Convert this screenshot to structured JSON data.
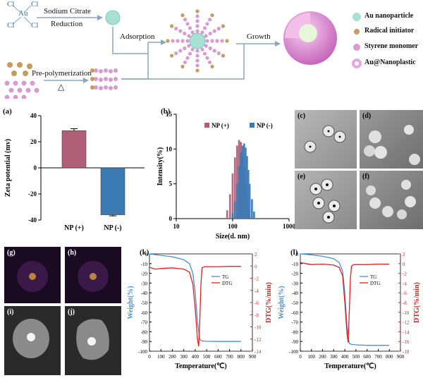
{
  "scheme": {
    "au_symbol": "Au",
    "cl_label": "Cl",
    "step_sodium_citrate": "Sodium Citrate",
    "step_reduction": "Reduction",
    "step_prepolymerization": "Pre-polymerization",
    "delta_symbol": "△",
    "step_adsorption": "Adsorption",
    "step_growth": "Growth",
    "legend": [
      {
        "label": "Au nanoparticle",
        "color": "#a8e0d4"
      },
      {
        "label": "Radical initiator",
        "color": "#c79a5e"
      },
      {
        "label": "Styrene monomer",
        "color": "#d99ad3"
      },
      {
        "label": "Au@Nanoplastic",
        "color": "#e6a6df"
      }
    ]
  },
  "panel_labels": {
    "a": "(a)",
    "b": "(b)",
    "c": "(c)",
    "d": "(d)",
    "e": "(e)",
    "f": "(f)",
    "g": "(g)",
    "h": "(h)",
    "i": "(i)",
    "j": "(j)",
    "k": "(k)",
    "l": "(l)"
  },
  "chart_data": [
    {
      "type": "bar",
      "panel": "(a)",
      "categories": [
        "NP (+)",
        "NP (-)"
      ],
      "values": [
        28.5,
        -36
      ],
      "errors": [
        1.5,
        0.8
      ],
      "colors": [
        "#b05f78",
        "#3c7ab4"
      ],
      "ylabel": "Zeta potential (mv)",
      "ylim": [
        -40,
        40
      ],
      "yticks": [
        "40",
        "20",
        "0",
        "-20",
        "-40"
      ]
    },
    {
      "type": "bar",
      "panel": "(b)",
      "xlabel": "Size(d. nm)",
      "ylabel": "Intensity(%)",
      "x_scale": "log",
      "xlim": [
        10,
        1000
      ],
      "ylim": [
        0,
        15
      ],
      "xticks": [
        "10",
        "100",
        "1000"
      ],
      "yticks": [
        "15",
        "10",
        "5",
        "0"
      ],
      "legend_position": "top",
      "series": [
        {
          "name": "NP (+)",
          "color": "#b05f78",
          "x": [
            80,
            90,
            100,
            110,
            120,
            130,
            140,
            150,
            160,
            170,
            180,
            190,
            200
          ],
          "values": [
            1.2,
            3.5,
            6.5,
            8.8,
            10.5,
            11.3,
            11.0,
            9.5,
            7.5,
            5.0,
            3.0,
            1.3,
            0.4
          ]
        },
        {
          "name": "NP (-)",
          "color": "#3c7ab4",
          "x": [
            100,
            110,
            120,
            130,
            140,
            150,
            160,
            170,
            180,
            190,
            200,
            220,
            240
          ],
          "values": [
            0.8,
            2.5,
            5.0,
            7.5,
            9.5,
            10.5,
            10.8,
            10.2,
            9.0,
            7.0,
            5.0,
            2.8,
            1.0
          ]
        }
      ]
    },
    {
      "type": "line",
      "panel": "(k)",
      "xlabel": "Temperature(℃)",
      "ylabel": "Weight(%)",
      "y2label": "DTG(%/min)",
      "xlim": [
        0,
        900
      ],
      "ylim": [
        -100,
        0
      ],
      "y2lim": [
        -14,
        2
      ],
      "xticks": [
        "0",
        "100",
        "200",
        "300",
        "400",
        "500",
        "600",
        "700",
        "800",
        "900"
      ],
      "yticks": [
        "0",
        "-10",
        "-20",
        "-30",
        "-40",
        "-50",
        "-60",
        "-70",
        "-80",
        "-90",
        "-100"
      ],
      "y2ticks": [
        "2",
        "0",
        "-2",
        "-4",
        "-6",
        "-8",
        "-10",
        "-12",
        "-14"
      ],
      "series": [
        {
          "name": "TG",
          "axis": "left",
          "color": "#4a8fd0",
          "x": [
            0,
            100,
            200,
            300,
            350,
            380,
            400,
            420,
            440,
            460,
            500,
            600,
            700,
            800
          ],
          "values": [
            0,
            -1.5,
            -3,
            -6,
            -10,
            -20,
            -40,
            -70,
            -88,
            -89.5,
            -89.8,
            -90,
            -90,
            -90
          ]
        },
        {
          "name": "DTG",
          "axis": "right",
          "color": "#e02020",
          "x": [
            0,
            50,
            100,
            200,
            300,
            350,
            380,
            400,
            420,
            430,
            440,
            450,
            460,
            480,
            500,
            600,
            700,
            800
          ],
          "values": [
            -0.2,
            -0.5,
            -0.4,
            -0.3,
            -0.5,
            -1.0,
            -3.0,
            -7.0,
            -12.0,
            -13.2,
            -9.0,
            -3.0,
            -0.3,
            -0.1,
            -0.1,
            -0.1,
            -0.05,
            -0.05
          ]
        }
      ]
    },
    {
      "type": "line",
      "panel": "(l)",
      "xlabel": "Temperature(℃)",
      "ylabel": "Weight(%)",
      "y2label": "DTG(%/min)",
      "xlim": [
        0,
        900
      ],
      "ylim": [
        -100,
        0
      ],
      "y2lim": [
        -18,
        2
      ],
      "xticks": [
        "0",
        "100",
        "200",
        "300",
        "400",
        "500",
        "600",
        "700",
        "800",
        "900"
      ],
      "yticks": [
        "0",
        "-10",
        "-20",
        "-30",
        "-40",
        "-50",
        "-60",
        "-70",
        "-80",
        "-90",
        "-100"
      ],
      "y2ticks": [
        "2",
        "0",
        "-2",
        "-4",
        "-6",
        "-8",
        "-10",
        "-12",
        "-14",
        "-16",
        "-18"
      ],
      "series": [
        {
          "name": "TG",
          "axis": "left",
          "color": "#4a8fd0",
          "x": [
            0,
            100,
            200,
            300,
            350,
            380,
            400,
            420,
            440,
            460,
            500,
            600,
            700,
            800
          ],
          "values": [
            0,
            -1,
            -2.5,
            -5,
            -9,
            -18,
            -40,
            -75,
            -92,
            -93,
            -93.5,
            -94,
            -94,
            -94
          ]
        },
        {
          "name": "DTG",
          "axis": "right",
          "color": "#e02020",
          "x": [
            0,
            50,
            100,
            200,
            300,
            350,
            380,
            400,
            420,
            430,
            440,
            450,
            460,
            480,
            500,
            600,
            700,
            800
          ],
          "values": [
            0.2,
            0.0,
            -0.2,
            -0.1,
            -0.3,
            -0.8,
            -2.5,
            -8.0,
            -14.5,
            -16.2,
            -10.0,
            -3.0,
            -0.5,
            -0.2,
            -0.2,
            -0.2,
            -0.1,
            -0.1
          ]
        }
      ]
    }
  ]
}
